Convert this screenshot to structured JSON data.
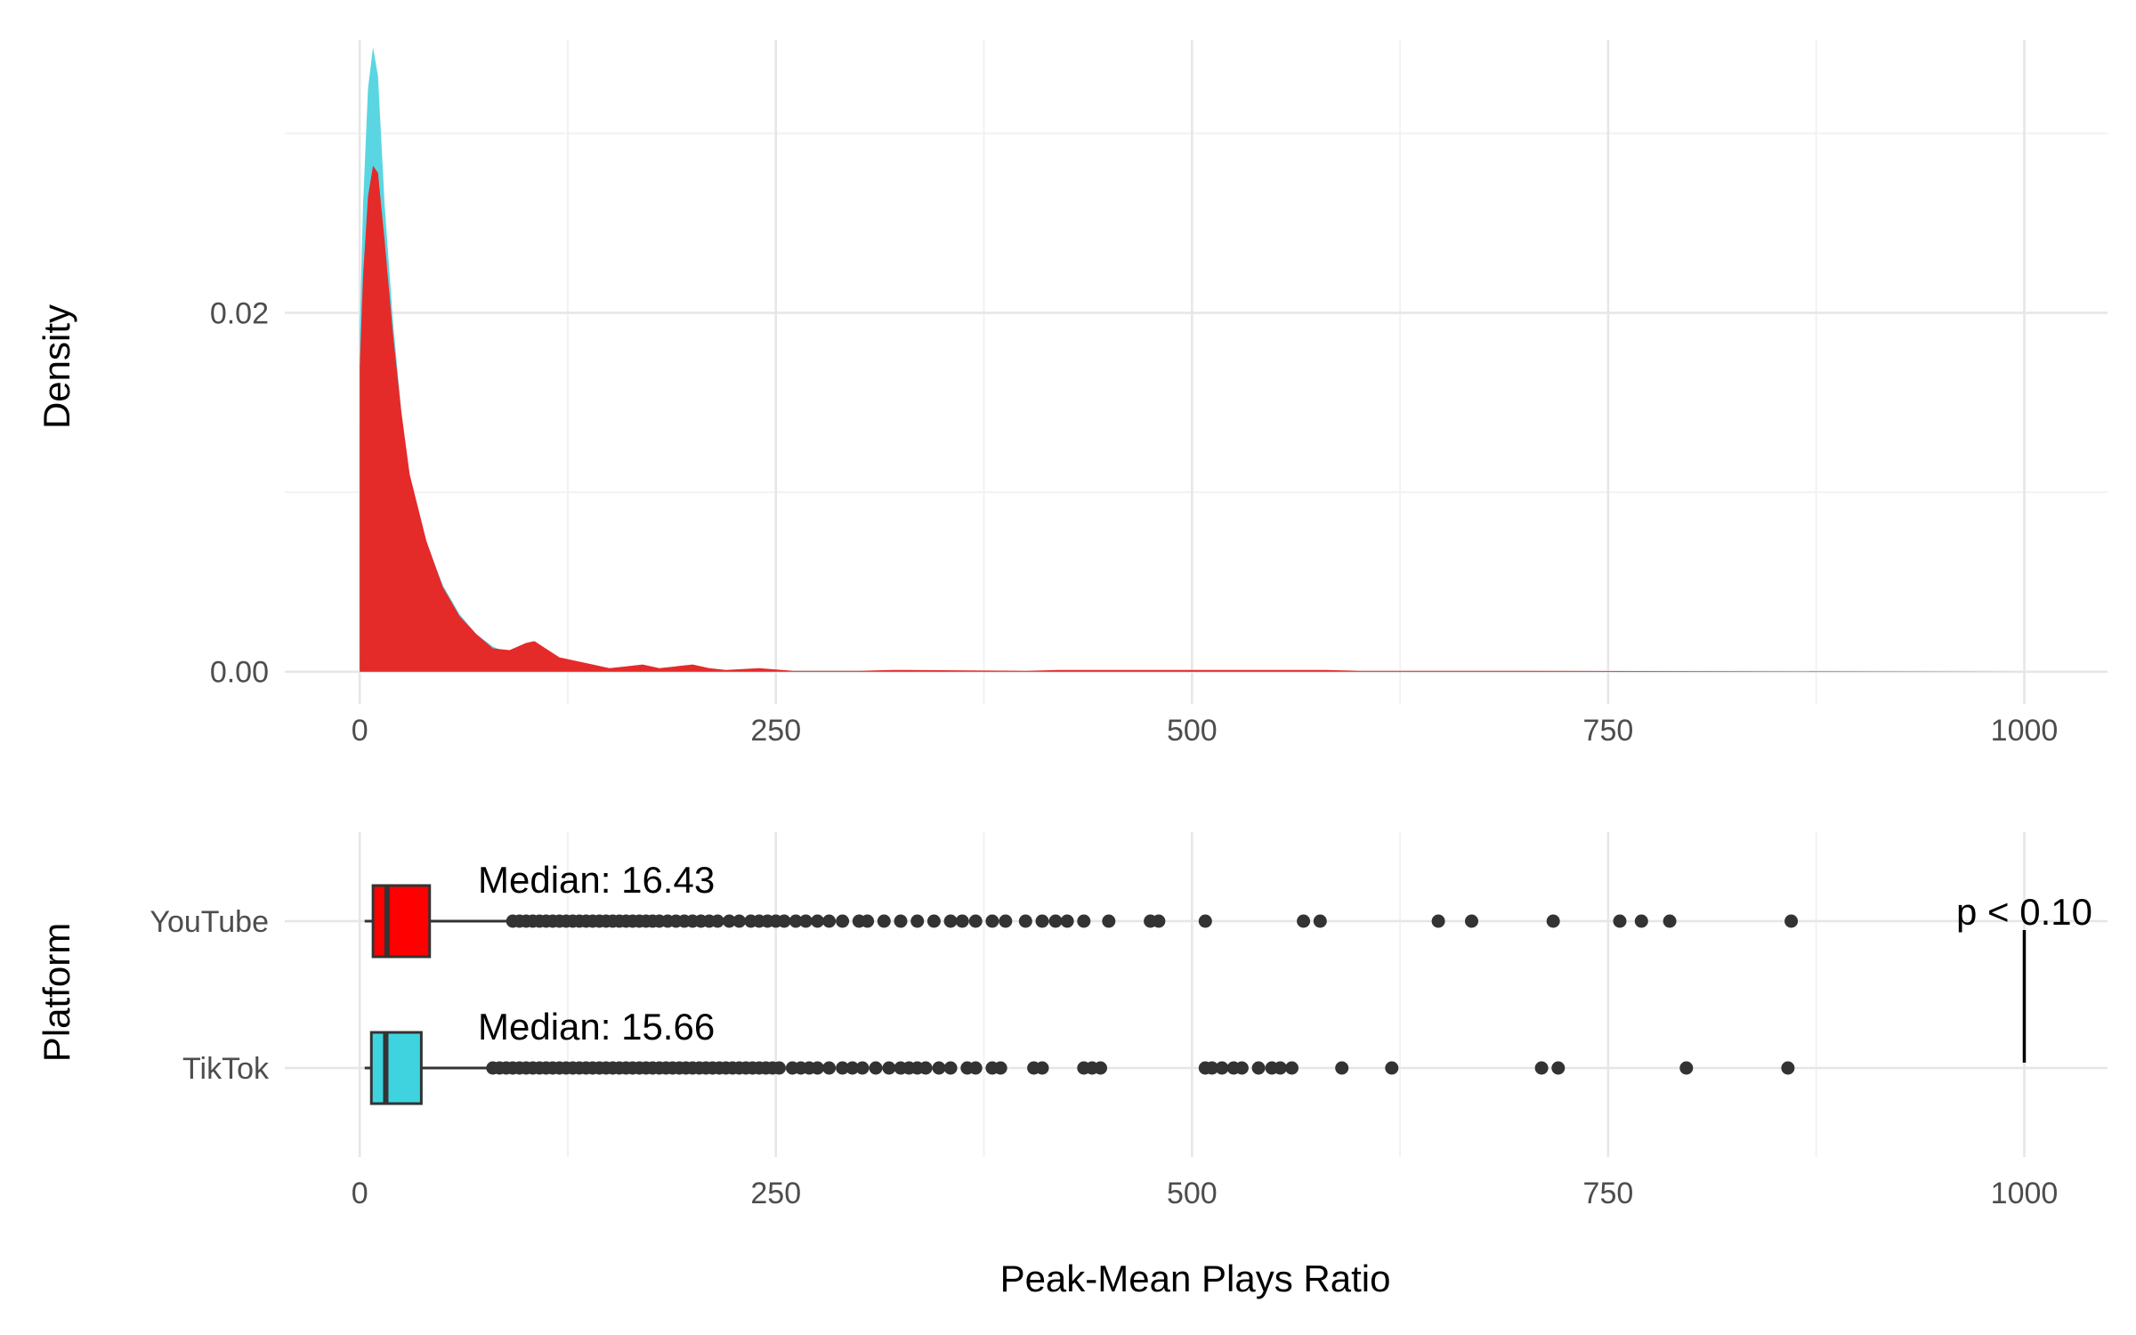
{
  "colors": {
    "youtube": "#ff0000",
    "tiktok": "#3fd3e0",
    "youtube_density": "#e52a2a",
    "tiktok_density": "#5ad6e2",
    "grid_major": "#e6e6e6",
    "grid_minor": "#f2f2f2",
    "outline": "#333333"
  },
  "chart_data": [
    {
      "type": "area",
      "ylabel": "Density",
      "xlabel": "",
      "xlim": [
        -45,
        1050
      ],
      "ylim": [
        -0.0018,
        0.0352
      ],
      "x_ticks": [
        0,
        250,
        500,
        750,
        1000
      ],
      "x_tick_labels": [
        "0",
        "250",
        "500",
        "750",
        "1000"
      ],
      "y_ticks": [
        0,
        0.02
      ],
      "y_tick_labels": [
        "0.00",
        "0.02"
      ],
      "y_minor_ticks": [
        0.01,
        0.03
      ],
      "grid": true,
      "series": [
        {
          "key": "tiktok",
          "x": [
            0,
            2,
            5,
            8,
            11,
            15,
            20,
            25,
            30,
            40,
            50,
            60,
            70,
            80,
            90,
            100,
            110,
            120,
            130,
            140,
            150,
            160,
            180,
            200,
            250,
            300,
            400,
            520,
            600,
            700,
            800,
            1000
          ],
          "y": [
            0.019,
            0.026,
            0.0325,
            0.0348,
            0.0332,
            0.026,
            0.0195,
            0.0145,
            0.0108,
            0.0072,
            0.0048,
            0.0032,
            0.0021,
            0.0014,
            0.001,
            0.0007,
            0.0005,
            0.0004,
            0.0003,
            0.00025,
            0.0002,
            0.00015,
            0.0001,
            0.0001,
            5e-05,
            4e-05,
            3e-05,
            3e-05,
            2e-05,
            2e-05,
            1e-05,
            0
          ]
        },
        {
          "key": "youtube",
          "x": [
            0,
            2,
            5,
            8,
            11,
            15,
            20,
            25,
            30,
            40,
            50,
            60,
            70,
            80,
            90,
            100,
            105,
            110,
            120,
            130,
            140,
            150,
            160,
            170,
            180,
            190,
            200,
            210,
            220,
            240,
            260,
            300,
            320,
            400,
            420,
            580,
            600,
            700,
            800,
            1000
          ],
          "y": [
            0.017,
            0.022,
            0.0265,
            0.0282,
            0.0278,
            0.024,
            0.0188,
            0.0145,
            0.011,
            0.0073,
            0.0047,
            0.0031,
            0.0021,
            0.0013,
            0.0012,
            0.0016,
            0.0017,
            0.0014,
            0.0008,
            0.0006,
            0.0004,
            0.0002,
            0.0003,
            0.0004,
            0.0002,
            0.0003,
            0.0004,
            0.0002,
            0.0001,
            0.0002,
            5e-05,
            5e-05,
            0.0001,
            5e-05,
            0.0001,
            0.0001,
            5e-05,
            5e-05,
            3e-05,
            0
          ]
        }
      ]
    },
    {
      "type": "box",
      "xlabel": "Peak-Mean Plays Ratio",
      "ylabel": "Platform",
      "xlim": [
        -45,
        1050
      ],
      "x_ticks": [
        0,
        250,
        500,
        750,
        1000
      ],
      "x_tick_labels": [
        "0",
        "250",
        "500",
        "750",
        "1000"
      ],
      "categories": [
        "YouTube",
        "TikTok"
      ],
      "grid": true,
      "series": [
        {
          "name": "YouTube",
          "key": "youtube",
          "min": 3,
          "q1": 8,
          "median": 16.43,
          "q3": 42,
          "whisker_high": 90,
          "median_label": "Median: 16.43",
          "outliers": [
            92,
            96,
            100,
            104,
            108,
            112,
            116,
            120,
            124,
            128,
            132,
            136,
            140,
            144,
            148,
            152,
            156,
            160,
            164,
            168,
            172,
            176,
            180,
            185,
            190,
            195,
            200,
            205,
            210,
            215,
            222,
            228,
            235,
            240,
            245,
            250,
            255,
            262,
            268,
            275,
            282,
            290,
            300,
            305,
            315,
            325,
            335,
            345,
            355,
            362,
            370,
            380,
            388,
            400,
            410,
            418,
            425,
            435,
            450,
            475,
            480,
            508,
            567,
            577,
            648,
            668,
            717,
            757,
            770,
            787,
            860
          ]
        },
        {
          "name": "TikTok",
          "key": "tiktok",
          "min": 3,
          "q1": 7,
          "median": 15.66,
          "q3": 37,
          "whisker_high": 78,
          "median_label": "Median: 15.66",
          "outliers": [
            80,
            84,
            88,
            92,
            96,
            100,
            104,
            108,
            112,
            116,
            120,
            124,
            128,
            132,
            136,
            140,
            144,
            148,
            152,
            156,
            160,
            164,
            168,
            172,
            176,
            180,
            184,
            188,
            192,
            196,
            200,
            204,
            208,
            212,
            216,
            220,
            224,
            228,
            232,
            236,
            240,
            244,
            248,
            252,
            260,
            265,
            270,
            275,
            282,
            290,
            296,
            302,
            310,
            318,
            325,
            330,
            335,
            340,
            348,
            355,
            365,
            370,
            380,
            385,
            405,
            410,
            435,
            440,
            445,
            508,
            512,
            518,
            525,
            530,
            540,
            548,
            553,
            560,
            590,
            620,
            710,
            720,
            797,
            858
          ]
        }
      ],
      "annotation": {
        "label": "p < 0.10",
        "x": 1000
      }
    }
  ]
}
